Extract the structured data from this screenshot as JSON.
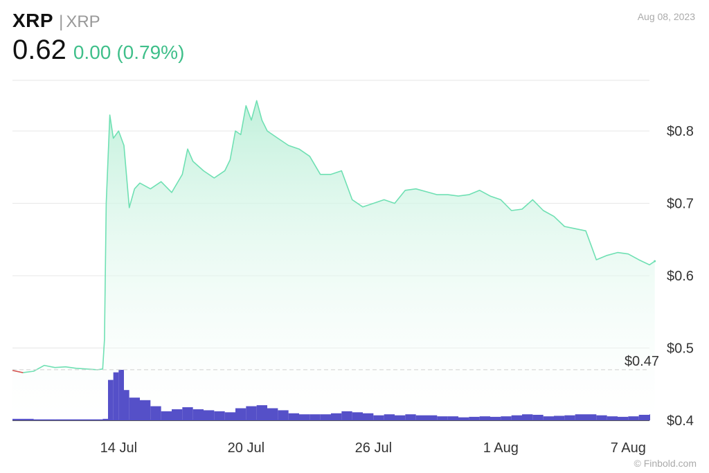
{
  "header": {
    "ticker": "XRP",
    "separator": "|",
    "name": "XRP",
    "price": "0.62",
    "change": "0.00",
    "change_pct": "(0.79%)",
    "date": "Aug 08, 2023"
  },
  "credit": "© Finbold.com",
  "colors": {
    "line": "#6fe0b3",
    "area_top": "#bff0da",
    "volume": "#5550c8",
    "down": "#e05050",
    "positive_text": "#3fbf8a"
  },
  "chart_data": {
    "type": "line",
    "title": "",
    "xlabel": "",
    "ylabel": "",
    "ylim": [
      0.4,
      0.87
    ],
    "xlim": [
      "2023-07-09",
      "2023-08-08"
    ],
    "yticks": [
      {
        "value": 0.8,
        "label": "$0.8"
      },
      {
        "value": 0.7,
        "label": "$0.7"
      },
      {
        "value": 0.6,
        "label": "$0.6"
      },
      {
        "value": 0.5,
        "label": "$0.5"
      },
      {
        "value": 0.4,
        "label": "$0.4"
      }
    ],
    "xticks": [
      {
        "date": "2023-07-14",
        "label": "14 Jul"
      },
      {
        "date": "2023-07-20",
        "label": "20 Jul"
      },
      {
        "date": "2023-07-26",
        "label": "26 Jul"
      },
      {
        "date": "2023-08-01",
        "label": "1 Aug"
      },
      {
        "date": "2023-08-07",
        "label": "7 Aug"
      }
    ],
    "reference_line": {
      "value": 0.47,
      "label": "$0.47"
    },
    "grid": true,
    "series": [
      {
        "points": [
          [
            "2023-07-09 00:00",
            0.469
          ],
          [
            "2023-07-09 12:00",
            0.466
          ],
          [
            "2023-07-10 00:00",
            0.468
          ],
          [
            "2023-07-10 12:00",
            0.476
          ],
          [
            "2023-07-11 00:00",
            0.473
          ],
          [
            "2023-07-11 12:00",
            0.474
          ],
          [
            "2023-07-12 00:00",
            0.472
          ],
          [
            "2023-07-12 12:00",
            0.471
          ],
          [
            "2023-07-13 00:00",
            0.47
          ],
          [
            "2023-07-13 06:00",
            0.471
          ],
          [
            "2023-07-13 08:00",
            0.512
          ],
          [
            "2023-07-13 10:00",
            0.7
          ],
          [
            "2023-07-13 14:00",
            0.822
          ],
          [
            "2023-07-13 18:00",
            0.79
          ],
          [
            "2023-07-14 00:00",
            0.8
          ],
          [
            "2023-07-14 06:00",
            0.78
          ],
          [
            "2023-07-14 12:00",
            0.694
          ],
          [
            "2023-07-14 18:00",
            0.72
          ],
          [
            "2023-07-15 00:00",
            0.728
          ],
          [
            "2023-07-15 12:00",
            0.72
          ],
          [
            "2023-07-16 00:00",
            0.73
          ],
          [
            "2023-07-16 12:00",
            0.715
          ],
          [
            "2023-07-17 00:00",
            0.74
          ],
          [
            "2023-07-17 06:00",
            0.775
          ],
          [
            "2023-07-17 12:00",
            0.758
          ],
          [
            "2023-07-18 00:00",
            0.745
          ],
          [
            "2023-07-18 12:00",
            0.735
          ],
          [
            "2023-07-19 00:00",
            0.745
          ],
          [
            "2023-07-19 06:00",
            0.76
          ],
          [
            "2023-07-19 12:00",
            0.8
          ],
          [
            "2023-07-19 18:00",
            0.795
          ],
          [
            "2023-07-20 00:00",
            0.835
          ],
          [
            "2023-07-20 06:00",
            0.815
          ],
          [
            "2023-07-20 12:00",
            0.842
          ],
          [
            "2023-07-20 18:00",
            0.815
          ],
          [
            "2023-07-21 00:00",
            0.8
          ],
          [
            "2023-07-21 12:00",
            0.79
          ],
          [
            "2023-07-22 00:00",
            0.78
          ],
          [
            "2023-07-22 12:00",
            0.775
          ],
          [
            "2023-07-23 00:00",
            0.765
          ],
          [
            "2023-07-23 12:00",
            0.74
          ],
          [
            "2023-07-24 00:00",
            0.74
          ],
          [
            "2023-07-24 12:00",
            0.745
          ],
          [
            "2023-07-25 00:00",
            0.705
          ],
          [
            "2023-07-25 12:00",
            0.695
          ],
          [
            "2023-07-26 00:00",
            0.7
          ],
          [
            "2023-07-26 12:00",
            0.705
          ],
          [
            "2023-07-27 00:00",
            0.7
          ],
          [
            "2023-07-27 12:00",
            0.718
          ],
          [
            "2023-07-28 00:00",
            0.72
          ],
          [
            "2023-07-28 12:00",
            0.716
          ],
          [
            "2023-07-29 00:00",
            0.712
          ],
          [
            "2023-07-29 12:00",
            0.712
          ],
          [
            "2023-07-30 00:00",
            0.71
          ],
          [
            "2023-07-30 12:00",
            0.712
          ],
          [
            "2023-07-31 00:00",
            0.718
          ],
          [
            "2023-07-31 12:00",
            0.71
          ],
          [
            "2023-08-01 00:00",
            0.705
          ],
          [
            "2023-08-01 12:00",
            0.69
          ],
          [
            "2023-08-02 00:00",
            0.692
          ],
          [
            "2023-08-02 12:00",
            0.705
          ],
          [
            "2023-08-03 00:00",
            0.69
          ],
          [
            "2023-08-03 12:00",
            0.682
          ],
          [
            "2023-08-04 00:00",
            0.668
          ],
          [
            "2023-08-04 12:00",
            0.665
          ],
          [
            "2023-08-05 00:00",
            0.662
          ],
          [
            "2023-08-05 06:00",
            0.642
          ],
          [
            "2023-08-05 12:00",
            0.622
          ],
          [
            "2023-08-06 00:00",
            0.628
          ],
          [
            "2023-08-06 12:00",
            0.632
          ],
          [
            "2023-08-07 00:00",
            0.63
          ],
          [
            "2023-08-07 12:00",
            0.622
          ],
          [
            "2023-08-08 00:00",
            0.615
          ],
          [
            "2023-08-08 06:00",
            0.62
          ]
        ]
      },
      {
        "type": "bar",
        "points": [
          [
            "2023-07-09",
            0.03
          ],
          [
            "2023-07-10",
            0.02
          ],
          [
            "2023-07-11",
            0.02
          ],
          [
            "2023-07-12",
            0.02
          ],
          [
            "2023-07-13 06:00",
            0.03
          ],
          [
            "2023-07-13 12:00",
            0.8
          ],
          [
            "2023-07-13 18:00",
            0.95
          ],
          [
            "2023-07-14 00:00",
            1.0
          ],
          [
            "2023-07-14 06:00",
            0.6
          ],
          [
            "2023-07-14 12:00",
            0.45
          ],
          [
            "2023-07-15 00:00",
            0.4
          ],
          [
            "2023-07-15 12:00",
            0.28
          ],
          [
            "2023-07-16 00:00",
            0.18
          ],
          [
            "2023-07-16 12:00",
            0.22
          ],
          [
            "2023-07-17 00:00",
            0.26
          ],
          [
            "2023-07-17 12:00",
            0.22
          ],
          [
            "2023-07-18 00:00",
            0.2
          ],
          [
            "2023-07-18 12:00",
            0.18
          ],
          [
            "2023-07-19 00:00",
            0.16
          ],
          [
            "2023-07-19 12:00",
            0.24
          ],
          [
            "2023-07-20 00:00",
            0.28
          ],
          [
            "2023-07-20 12:00",
            0.3
          ],
          [
            "2023-07-21 00:00",
            0.24
          ],
          [
            "2023-07-21 12:00",
            0.2
          ],
          [
            "2023-07-22 00:00",
            0.14
          ],
          [
            "2023-07-22 12:00",
            0.12
          ],
          [
            "2023-07-23 00:00",
            0.12
          ],
          [
            "2023-07-23 12:00",
            0.12
          ],
          [
            "2023-07-24 00:00",
            0.14
          ],
          [
            "2023-07-24 12:00",
            0.18
          ],
          [
            "2023-07-25 00:00",
            0.16
          ],
          [
            "2023-07-25 12:00",
            0.14
          ],
          [
            "2023-07-26 00:00",
            0.1
          ],
          [
            "2023-07-26 12:00",
            0.12
          ],
          [
            "2023-07-27 00:00",
            0.1
          ],
          [
            "2023-07-27 12:00",
            0.12
          ],
          [
            "2023-07-28 00:00",
            0.1
          ],
          [
            "2023-07-28 12:00",
            0.1
          ],
          [
            "2023-07-29 00:00",
            0.08
          ],
          [
            "2023-07-29 12:00",
            0.08
          ],
          [
            "2023-07-30 00:00",
            0.06
          ],
          [
            "2023-07-30 12:00",
            0.07
          ],
          [
            "2023-07-31 00:00",
            0.08
          ],
          [
            "2023-07-31 12:00",
            0.07
          ],
          [
            "2023-08-01 00:00",
            0.08
          ],
          [
            "2023-08-01 12:00",
            0.1
          ],
          [
            "2023-08-02 00:00",
            0.12
          ],
          [
            "2023-08-02 12:00",
            0.11
          ],
          [
            "2023-08-03 00:00",
            0.08
          ],
          [
            "2023-08-03 12:00",
            0.09
          ],
          [
            "2023-08-04 00:00",
            0.1
          ],
          [
            "2023-08-04 12:00",
            0.12
          ],
          [
            "2023-08-05 00:00",
            0.12
          ],
          [
            "2023-08-05 12:00",
            0.1
          ],
          [
            "2023-08-06 00:00",
            0.08
          ],
          [
            "2023-08-06 12:00",
            0.07
          ],
          [
            "2023-08-07 00:00",
            0.08
          ],
          [
            "2023-08-07 12:00",
            0.11
          ],
          [
            "2023-08-08 00:00",
            0.12
          ]
        ]
      }
    ]
  }
}
